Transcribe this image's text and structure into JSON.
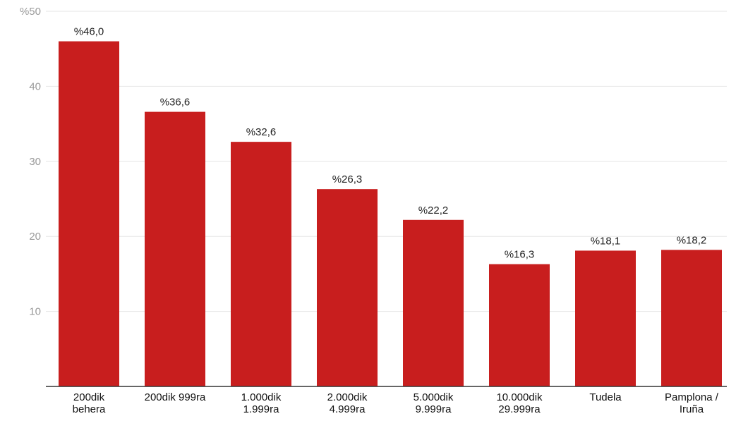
{
  "chart_data": {
    "type": "bar",
    "title": "",
    "xlabel": "",
    "ylabel": "",
    "ylim": [
      0,
      50
    ],
    "yticks": [
      {
        "value": 10,
        "label": "10"
      },
      {
        "value": 20,
        "label": "20"
      },
      {
        "value": 30,
        "label": "30"
      },
      {
        "value": 40,
        "label": "40"
      },
      {
        "value": 50,
        "label": "%50"
      }
    ],
    "grid": true,
    "categories": [
      [
        "200dik",
        "behera"
      ],
      [
        "200dik 999ra"
      ],
      [
        "1.000dik",
        "1.999ra"
      ],
      [
        "2.000dik",
        "4.999ra"
      ],
      [
        "5.000dik",
        "9.999ra"
      ],
      [
        "10.000dik",
        "29.999ra"
      ],
      [
        "Tudela"
      ],
      [
        "Pamplona /",
        "Iruña"
      ]
    ],
    "values": [
      46.0,
      36.6,
      32.6,
      26.3,
      22.2,
      16.3,
      18.1,
      18.2
    ],
    "data_labels": [
      "%46,0",
      "%36,6",
      "%32,6",
      "%26,3",
      "%22,2",
      "%16,3",
      "%18,1",
      "%18,2"
    ],
    "colors": {
      "bar": "#c81e1e",
      "grid": "#e6e6e6",
      "axis": "#333333"
    }
  }
}
